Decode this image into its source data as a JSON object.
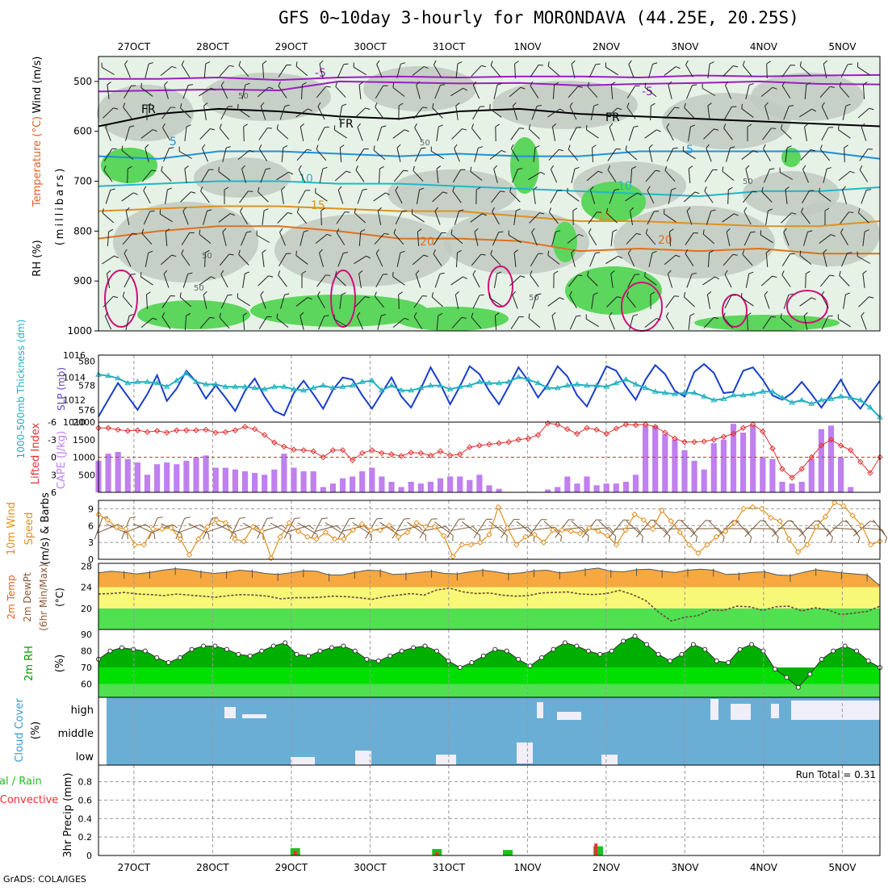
{
  "title": "GFS 0~10day 3-hourly for MORONDAVA (44.25E, 20.25S)",
  "credit": "GrADS: COLA/IGES",
  "date_labels": [
    "27OCT",
    "28OCT",
    "29OCT",
    "30OCT",
    "31OCT",
    "1NOV",
    "2NOV",
    "3NOV",
    "4NOV",
    "5NOV"
  ],
  "colors": {
    "rh_green": "#5cd65c",
    "rh_grey_dark": "#c0cac0",
    "rh_grey_light": "#e6f2e6",
    "temp_m5": "#9a1fc0",
    "temp_fr": "#000000",
    "temp_5": "#1e90e0",
    "temp_10": "#20b8c8",
    "temp_15": "#e09020",
    "temp_20": "#e07020",
    "lcl_magenta": "#d0107a",
    "slp": "#1a3ecc",
    "thickness": "#20b0c0",
    "lifted_index": "#e03030",
    "cape": "#c080f0",
    "wind_speed": "#e09020",
    "wind_barb": "#7a5a3a",
    "temp_fill": "#f8a840",
    "dew_band": "#f8f878",
    "low_band": "#50e050",
    "rh_dark": "#00b000",
    "rh_light": "#00e000",
    "cloud_blue": "#6aaed6",
    "cloud_white": "#f0eef8",
    "precip_green": "#20c020",
    "precip_red": "#f03030"
  },
  "chart_data": [
    {
      "type": "heatmap",
      "panel": "upper-air",
      "ylabel": "(millibars)",
      "ylabels": [
        "Wind (m/s)",
        "Temperature (°C)",
        "RH (%)"
      ],
      "y_ticks": [
        500,
        600,
        700,
        800,
        900,
        1000
      ],
      "ylim": [
        450,
        1000
      ],
      "contour_labels": [
        "-5",
        "FR",
        "5",
        "10",
        "15",
        "20",
        "50"
      ],
      "isotherms": [
        {
          "name": "-5",
          "pressure": [
            495,
            495,
            492,
            497,
            492,
            490,
            492,
            490,
            490,
            492,
            488,
            490,
            488,
            487
          ]
        },
        {
          "name": "-5b",
          "pressure": [
            520,
            518,
            516,
            518,
            500,
            502,
            504,
            503,
            508,
            505,
            503,
            500,
            505,
            506
          ]
        },
        {
          "name": "FR",
          "pressure": [
            590,
            565,
            555,
            560,
            570,
            575,
            560,
            555,
            565,
            570,
            575,
            580,
            585,
            590
          ]
        },
        {
          "name": "5",
          "pressure": [
            650,
            655,
            640,
            640,
            645,
            650,
            645,
            650,
            650,
            640,
            640,
            640,
            640,
            655
          ]
        },
        {
          "name": "10",
          "pressure": [
            710,
            705,
            700,
            700,
            705,
            705,
            710,
            715,
            720,
            725,
            730,
            720,
            720,
            712
          ]
        },
        {
          "name": "15",
          "pressure": [
            760,
            755,
            750,
            750,
            755,
            760,
            760,
            770,
            780,
            780,
            785,
            790,
            790,
            780
          ]
        },
        {
          "name": "20",
          "pressure": [
            815,
            800,
            790,
            790,
            800,
            815,
            815,
            820,
            840,
            835,
            840,
            835,
            845,
            845
          ]
        }
      ]
    },
    {
      "type": "line",
      "panel": "slp-thickness",
      "ylabels": [
        "1000-500mb Thickness (dm)",
        "SLP (mb)"
      ],
      "left_ticks": [
        576,
        578,
        580
      ],
      "right_ticks": [
        1010,
        1012,
        1014,
        1016
      ],
      "series": [
        {
          "name": "SLP",
          "axis": "right",
          "ylim": [
            1010,
            1016
          ],
          "values": [
            1010.5,
            1012,
            1013.5,
            1012.3,
            1011.1,
            1012.5,
            1014.2,
            1011.9,
            1013,
            1014.6,
            1013.6,
            1012.1,
            1013.3,
            1012.2,
            1011,
            1012.8,
            1013.9,
            1012.3,
            1011,
            1010.6,
            1012.6,
            1013.7,
            1012.5,
            1011.2,
            1012.9,
            1014,
            1013.8,
            1012.4,
            1011.2,
            1012.6,
            1014,
            1012.3,
            1011.3,
            1013,
            1014.9,
            1013.4,
            1011.6,
            1013.2,
            1015,
            1014.3,
            1012.8,
            1011.6,
            1013.2,
            1014.9,
            1013.7,
            1012.2,
            1013.4,
            1015,
            1014.1,
            1012.4,
            1011.4,
            1013.2,
            1015,
            1014.6,
            1013.2,
            1012,
            1013.8,
            1015.1,
            1014.3,
            1012.8,
            1012.3,
            1014.5,
            1015.2,
            1014.4,
            1012.6,
            1012.7,
            1014.6,
            1014.9,
            1013.8,
            1012.4,
            1012,
            1012.6,
            1013.6,
            1012.5,
            1011.3,
            1012.5,
            1013.8,
            1012.2,
            1011.2,
            1012.5,
            1013.7
          ]
        },
        {
          "name": "Thickness",
          "axis": "left",
          "ylim": [
            575,
            580.5
          ],
          "values": [
            578.9,
            578.8,
            578.6,
            578.2,
            578.3,
            578.3,
            578.2,
            577.9,
            578.4,
            579.0,
            578.3,
            578.1,
            578.1,
            577.9,
            577.9,
            577.9,
            577.8,
            577.7,
            577.9,
            577.9,
            577.7,
            577.6,
            577.8,
            578.0,
            577.8,
            577.9,
            578.0,
            578.3,
            578.4,
            577.6,
            578.0,
            577.6,
            577.6,
            577.8,
            578.0,
            578.0,
            577.7,
            577.9,
            578.0,
            578.3,
            578.2,
            578.2,
            578.3,
            578.7,
            578.5,
            578.2,
            577.8,
            577.8,
            578.0,
            578.1,
            578.0,
            578.0,
            577.9,
            578.2,
            578.5,
            578.1,
            577.8,
            577.5,
            577.4,
            577.3,
            577.4,
            577.4,
            577.1,
            576.8,
            576.9,
            577.2,
            577.2,
            577.3,
            577.5,
            577.5,
            577.0,
            576.6,
            576.8,
            576.5,
            576.8,
            576.9,
            577.1,
            577.0,
            576.8,
            576.2,
            575.4
          ]
        }
      ]
    },
    {
      "type": "bar",
      "panel": "cape-li",
      "ylabels": [
        "Lifted Index",
        "CAPE (J/kg)"
      ],
      "left_ticks": [
        "6",
        "3",
        "0",
        "-3",
        "-6"
      ],
      "right_ticks": [
        500,
        1000,
        1500,
        2000
      ],
      "series": [
        {
          "name": "CAPE",
          "axis": "right",
          "ylim": [
            0,
            2000
          ],
          "values": [
            900,
            1100,
            1150,
            950,
            850,
            500,
            800,
            850,
            800,
            900,
            1000,
            1050,
            700,
            700,
            650,
            600,
            550,
            500,
            650,
            1100,
            700,
            600,
            600,
            150,
            250,
            400,
            450,
            600,
            700,
            450,
            300,
            150,
            300,
            250,
            300,
            400,
            450,
            450,
            350,
            500,
            200,
            100,
            0,
            0,
            0,
            0,
            80,
            150,
            450,
            250,
            450,
            200,
            250,
            250,
            300,
            500,
            1900,
            1900,
            1650,
            1500,
            1200,
            900,
            650,
            1400,
            1500,
            1950,
            1700,
            1900,
            1000,
            950,
            300,
            250,
            300,
            950,
            1800,
            1900,
            1000,
            150,
            0,
            0,
            0
          ]
        },
        {
          "name": "Lifted Index",
          "axis": "left",
          "ylim": [
            6,
            -6
          ],
          "color": "red",
          "values": [
            -5,
            -5,
            -4.7,
            -4.5,
            -4.6,
            -4.3,
            -4.5,
            -4.2,
            -4.6,
            -4.6,
            -4.6,
            -4.7,
            -4.2,
            -4.3,
            -4.6,
            -5.2,
            -4.8,
            -3.8,
            -2.5,
            -1.8,
            -1.3,
            -1.2,
            -1,
            0,
            -1.2,
            -1.2,
            0.5,
            -0.7,
            -1.2,
            -0.7,
            -0.5,
            -0.2,
            -0.8,
            -0.7,
            -0.3,
            -1,
            -0.3,
            -0.5,
            -1.7,
            -2,
            -2.2,
            -2.4,
            -2.6,
            -3,
            -3.2,
            -3.8,
            -5.8,
            -5.6,
            -4.8,
            -4,
            -5,
            -4.7,
            -4,
            -4.9,
            -5.6,
            -5.5,
            -5.6,
            -5.2,
            -4.2,
            -3.2,
            -2.6,
            -2.6,
            -2.7,
            -3,
            -3.5,
            -4,
            -5,
            -5.6,
            -4.4,
            -1.5,
            2,
            3.5,
            2,
            0,
            -2,
            -3,
            -2,
            -1.2,
            0.8,
            2.7,
            0
          ]
        }
      ]
    },
    {
      "type": "line",
      "panel": "wind10m",
      "ylabels": [
        "10m Wind Speed",
        "(m/s) & Barbs"
      ],
      "left_ticks": [
        0,
        3,
        6,
        9
      ],
      "ylim": [
        0,
        10.5
      ],
      "series": [
        {
          "name": "Speed",
          "values": [
            8,
            7,
            5.7,
            5.4,
            2.6,
            2.6,
            5.4,
            5.4,
            5.6,
            3.6,
            0.8,
            3.6,
            5.8,
            7,
            6.5,
            3.6,
            3.2,
            5.8,
            5,
            0.2,
            4,
            6.5,
            5,
            4,
            3.6,
            4.8,
            3.6,
            3.6,
            5.2,
            6.3,
            5.2,
            5.2,
            6,
            4,
            4.8,
            6.5,
            5.8,
            5.8,
            4.2,
            0.5,
            2.6,
            2.6,
            3,
            4.4,
            9.3,
            5.6,
            2.6,
            4,
            4.4,
            3,
            5.2,
            5.2,
            5,
            4.6,
            5.6,
            5,
            4.2,
            2.6,
            5.2,
            8,
            7,
            5.4,
            8.7,
            6.8,
            4.8,
            2.6,
            1.1,
            2.6,
            4,
            5,
            6.5,
            9,
            9.3,
            9,
            7.4,
            6.8,
            3.6,
            1.3,
            2.6,
            5.8,
            7.6,
            10.1,
            9.5,
            7.8,
            6,
            2.6,
            3.2
          ]
        }
      ]
    },
    {
      "type": "area",
      "panel": "temp2m",
      "ylabels": [
        "2m Temp",
        "2m DewPt",
        "(6hr Min/Max)",
        "(°C)"
      ],
      "left_ticks": [
        20,
        24,
        28
      ],
      "ylim": [
        16,
        28.5
      ],
      "series": [
        {
          "name": "Temp",
          "values": [
            26.7,
            27,
            26.8,
            26.5,
            26.8,
            27.2,
            27.5,
            27.3,
            26.9,
            26.6,
            26.8,
            27.2,
            27.0,
            26.6,
            26.4,
            26.7,
            27.1,
            27.0,
            26.3,
            26.3,
            26.8,
            27.2,
            27.1,
            26.4,
            26.5,
            26.8,
            27.0,
            26.6,
            26.5,
            26.9,
            27.2,
            26.9,
            26.5,
            26.7,
            27.1,
            27.2,
            26.7,
            26.9,
            27.3,
            27.6,
            27.0,
            26.9,
            27.3,
            27.4,
            27.0,
            26.8,
            27.2,
            27.4,
            27.2,
            26.4,
            26.5,
            26.8,
            26.9,
            26.3,
            26.2,
            26.8,
            27.3,
            27.0,
            26.7,
            26.5,
            26.3,
            24.3
          ]
        },
        {
          "name": "DewPt",
          "values": [
            22.7,
            22.8,
            23,
            22.7,
            22.6,
            22.4,
            22.7,
            22.5,
            22.3,
            22.1,
            22.4,
            22.6,
            22.5,
            22.3,
            21.8,
            22,
            22,
            22.1,
            22.3,
            22.2,
            22.0,
            21.7,
            22.2,
            22.5,
            22.8,
            22.5,
            23.5,
            23.8,
            23.1,
            22.8,
            22.9,
            22.5,
            22.3,
            22.4,
            22.9,
            23,
            23.1,
            22.7,
            22.6,
            22.8,
            23.4,
            22.6,
            21.5,
            19.3,
            17.6,
            18.3,
            18.6,
            19.7,
            19.6,
            20.4,
            20.3,
            19.6,
            20.3,
            20.4,
            19.5,
            20.1,
            19.7,
            18.8,
            19.1,
            19.4,
            20.4
          ]
        }
      ]
    },
    {
      "type": "area",
      "panel": "rh2m",
      "ylabels": [
        "2m RH",
        "(%)"
      ],
      "left_ticks": [
        60,
        70,
        80,
        90
      ],
      "ylim": [
        52,
        93
      ],
      "series": [
        {
          "name": "RH",
          "values": [
            75,
            80,
            82,
            81,
            80,
            76,
            73,
            76,
            81,
            83,
            83,
            81,
            78,
            77,
            80,
            83,
            85,
            78,
            77,
            80,
            82,
            83,
            80,
            75,
            74,
            77,
            80,
            82,
            83,
            80,
            74,
            70,
            73,
            77,
            81,
            80,
            75,
            71,
            76,
            81,
            85,
            83,
            80,
            78,
            80,
            86,
            89,
            84,
            78,
            74,
            78,
            84,
            81,
            74,
            73,
            81,
            84,
            80,
            69,
            64,
            58,
            66,
            75,
            80,
            83,
            80,
            74,
            70
          ]
        }
      ]
    },
    {
      "type": "bar",
      "panel": "cloud",
      "ylabels": [
        "Cloud Cover",
        "(%)"
      ],
      "left_ticks": [
        "high",
        "middle",
        "low"
      ]
    },
    {
      "type": "bar",
      "panel": "precip",
      "ylabels": [
        "Total / Rain",
        "Convective",
        "3hr Precip (mm)"
      ],
      "left_ticks": [
        0,
        0.2,
        0.4,
        0.6,
        0.8
      ],
      "ylim": [
        0,
        0.98
      ],
      "annotation": "Run Total = 0.31",
      "series": [
        {
          "name": "Total",
          "color": "green",
          "values": [
            {
              "day": 3.05,
              "v": 0.08
            },
            {
              "day": 4.85,
              "v": 0.07
            },
            {
              "day": 5.75,
              "v": 0.06
            },
            {
              "day": 6.9,
              "v": 0.1
            }
          ]
        },
        {
          "name": "Convective",
          "color": "red",
          "values": [
            {
              "day": 3.05,
              "v": 0.05
            },
            {
              "day": 4.85,
              "v": 0.04
            },
            {
              "day": 6.87,
              "v": 0.13
            }
          ]
        }
      ]
    }
  ]
}
